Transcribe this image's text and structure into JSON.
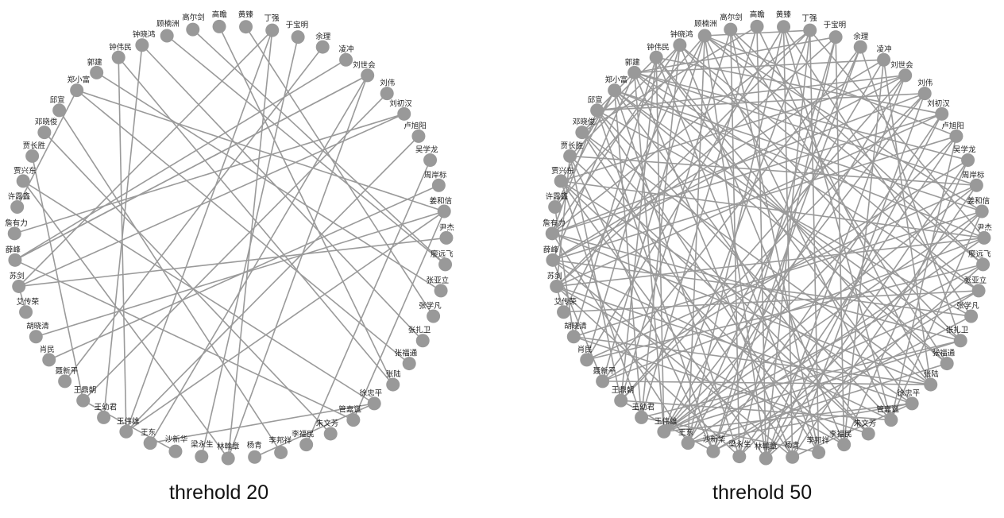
{
  "nodes": [
    "高尔剑",
    "高瞻",
    "黄臻",
    "丁强",
    "于宝明",
    "余理",
    "凌冲",
    "刘世会",
    "刘伟",
    "刘初汉",
    "卢旭阳",
    "吴学龙",
    "周岸标",
    "姜和信",
    "尹杰",
    "廖远飞",
    "张亚立",
    "张学凡",
    "张扎卫",
    "张福通",
    "张陆",
    "徐忠平",
    "管嘉诞",
    "朱文芳",
    "李福民",
    "李邦祥",
    "杨青",
    "林翰章",
    "梁永生",
    "沙新华",
    "王东",
    "王伟雄",
    "王幼君",
    "王鼎朝",
    "聂新平",
    "肖民",
    "胡晓清",
    "艾传荣",
    "苏剑",
    "薛峰",
    "詹有力",
    "许露鑫",
    "贾兴东",
    "贾长胜",
    "邓晓俊",
    "邱宣",
    "郑小富",
    "郭建",
    "钟伟民",
    "钟晓鸿",
    "顾楠洲"
  ],
  "graphs": [
    {
      "caption": "threhold 20",
      "edges": [
        [
          3,
          31
        ],
        [
          3,
          27
        ],
        [
          3,
          38
        ],
        [
          7,
          39
        ],
        [
          7,
          30
        ],
        [
          7,
          39
        ],
        [
          7,
          27
        ],
        [
          9,
          38
        ],
        [
          13,
          46
        ],
        [
          13,
          22
        ],
        [
          13,
          31
        ],
        [
          15,
          50
        ],
        [
          18,
          49
        ],
        [
          20,
          48
        ],
        [
          21,
          26
        ],
        [
          21,
          42
        ],
        [
          22,
          39
        ],
        [
          29,
          33
        ],
        [
          32,
          49
        ],
        [
          33,
          43
        ],
        [
          37,
          38
        ],
        [
          6,
          39
        ],
        [
          13,
          36
        ],
        [
          14,
          38
        ],
        [
          19,
          46
        ],
        [
          41,
          46
        ],
        [
          48,
          31
        ],
        [
          0,
          15
        ],
        [
          2,
          17
        ],
        [
          5,
          34
        ],
        [
          1,
          20
        ],
        [
          9,
          40
        ],
        [
          24,
          11
        ],
        [
          8,
          33
        ],
        [
          28,
          4
        ],
        [
          30,
          21
        ],
        [
          44,
          23
        ],
        [
          25,
          45
        ],
        [
          10,
          31
        ],
        [
          12,
          35
        ],
        [
          16,
          47
        ],
        [
          27,
          42
        ]
      ]
    },
    {
      "caption": "threhold 50",
      "edges": [
        [
          3,
          31
        ],
        [
          3,
          27
        ],
        [
          3,
          38
        ],
        [
          7,
          39
        ],
        [
          7,
          30
        ],
        [
          7,
          27
        ],
        [
          9,
          38
        ],
        [
          13,
          46
        ],
        [
          13,
          22
        ],
        [
          13,
          31
        ],
        [
          15,
          50
        ],
        [
          18,
          49
        ],
        [
          20,
          48
        ],
        [
          21,
          26
        ],
        [
          21,
          42
        ],
        [
          22,
          39
        ],
        [
          29,
          33
        ],
        [
          32,
          49
        ],
        [
          33,
          43
        ],
        [
          37,
          38
        ],
        [
          6,
          39
        ],
        [
          13,
          36
        ],
        [
          14,
          38
        ],
        [
          19,
          46
        ],
        [
          41,
          46
        ],
        [
          48,
          31
        ],
        [
          0,
          15
        ],
        [
          2,
          17
        ],
        [
          5,
          34
        ],
        [
          1,
          20
        ],
        [
          9,
          40
        ],
        [
          24,
          11
        ],
        [
          8,
          33
        ],
        [
          28,
          4
        ],
        [
          30,
          21
        ],
        [
          44,
          23
        ],
        [
          25,
          45
        ],
        [
          10,
          31
        ],
        [
          12,
          35
        ],
        [
          16,
          47
        ],
        [
          27,
          42
        ],
        [
          0,
          28
        ],
        [
          0,
          33
        ],
        [
          0,
          19
        ],
        [
          1,
          32
        ],
        [
          1,
          44
        ],
        [
          2,
          30
        ],
        [
          2,
          22
        ],
        [
          3,
          40
        ],
        [
          3,
          14
        ],
        [
          3,
          25
        ],
        [
          4,
          38
        ],
        [
          4,
          47
        ],
        [
          5,
          29
        ],
        [
          5,
          18
        ],
        [
          6,
          47
        ],
        [
          6,
          24
        ],
        [
          7,
          42
        ],
        [
          7,
          33
        ],
        [
          8,
          31
        ],
        [
          8,
          40
        ],
        [
          9,
          29
        ],
        [
          9,
          48
        ],
        [
          10,
          39
        ],
        [
          10,
          22
        ],
        [
          11,
          47
        ],
        [
          11,
          27
        ],
        [
          12,
          43
        ],
        [
          12,
          31
        ],
        [
          13,
          50
        ],
        [
          14,
          30
        ],
        [
          14,
          42
        ],
        [
          15,
          35
        ],
        [
          15,
          27
        ],
        [
          16,
          49
        ],
        [
          16,
          31
        ],
        [
          17,
          39
        ],
        [
          17,
          45
        ],
        [
          18,
          46
        ],
        [
          18,
          32
        ],
        [
          19,
          47
        ],
        [
          20,
          40
        ],
        [
          20,
          34
        ],
        [
          21,
          48
        ],
        [
          21,
          38
        ],
        [
          22,
          50
        ],
        [
          23,
          46
        ],
        [
          23,
          36
        ],
        [
          24,
          49
        ],
        [
          24,
          38
        ],
        [
          25,
          48
        ],
        [
          25,
          32
        ],
        [
          26,
          47
        ],
        [
          26,
          39
        ],
        [
          27,
          50
        ],
        [
          28,
          46
        ],
        [
          29,
          45
        ],
        [
          29,
          43
        ],
        [
          30,
          50
        ],
        [
          31,
          47
        ],
        [
          32,
          46
        ],
        [
          33,
          48
        ],
        [
          34,
          50
        ],
        [
          35,
          49
        ],
        [
          36,
          48
        ],
        [
          37,
          50
        ],
        [
          39,
          47
        ],
        [
          40,
          49
        ],
        [
          41,
          50
        ],
        [
          42,
          46
        ],
        [
          43,
          49
        ],
        [
          44,
          48
        ],
        [
          45,
          47
        ],
        [
          1,
          27
        ],
        [
          2,
          26
        ],
        [
          3,
          50
        ],
        [
          4,
          29
        ],
        [
          5,
          30
        ],
        [
          6,
          31
        ],
        [
          7,
          45
        ],
        [
          8,
          26
        ],
        [
          9,
          27
        ],
        [
          10,
          28
        ],
        [
          11,
          34
        ],
        [
          12,
          26
        ],
        [
          13,
          28
        ],
        [
          14,
          46
        ],
        [
          15,
          31
        ],
        [
          16,
          37
        ],
        [
          17,
          29
        ],
        [
          18,
          31
        ],
        [
          19,
          30
        ],
        [
          20,
          44
        ],
        [
          21,
          31
        ],
        [
          22,
          45
        ],
        [
          23,
          43
        ],
        [
          0,
          25
        ],
        [
          2,
          35
        ],
        [
          4,
          24
        ],
        [
          6,
          20
        ],
        [
          8,
          45
        ],
        [
          10,
          50
        ],
        [
          12,
          47
        ],
        [
          14,
          34
        ],
        [
          16,
          29
        ],
        [
          18,
          40
        ],
        [
          20,
          36
        ],
        [
          22,
          33
        ],
        [
          24,
          42
        ],
        [
          26,
          44
        ],
        [
          28,
          38
        ],
        [
          30,
          40
        ],
        [
          32,
          42
        ],
        [
          34,
          39
        ],
        [
          36,
          41
        ],
        [
          38,
          43
        ],
        [
          40,
          45
        ]
      ]
    }
  ]
}
